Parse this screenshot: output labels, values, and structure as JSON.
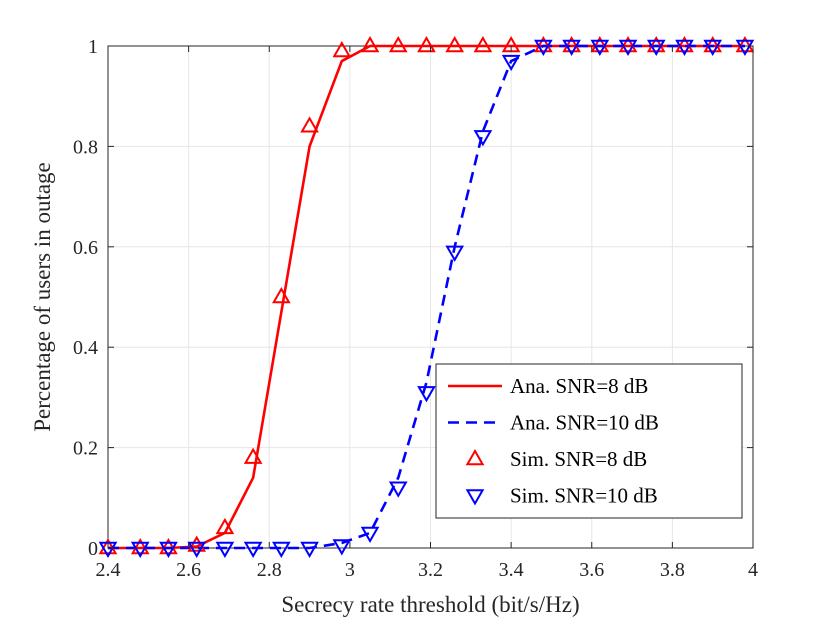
{
  "chart_data": {
    "type": "line",
    "title": "",
    "xlabel": "Secrecy rate threshold (bit/s/Hz)",
    "ylabel": "Percentage of users in outage",
    "xlim": [
      2.4,
      4
    ],
    "ylim": [
      0,
      1
    ],
    "grid": true,
    "x_ticks": [
      2.4,
      2.6,
      2.8,
      3,
      3.2,
      3.4,
      3.6,
      3.8,
      4
    ],
    "x_tick_labels": [
      "2.4",
      "2.6",
      "2.8",
      "3",
      "3.2",
      "3.4",
      "3.6",
      "3.8",
      "4"
    ],
    "y_ticks": [
      0,
      0.2,
      0.4,
      0.6,
      0.8,
      1
    ],
    "y_tick_labels": [
      "0",
      "0.2",
      "0.4",
      "0.6",
      "0.8",
      "1"
    ],
    "legend_position": "lower-right",
    "series": [
      {
        "name": "Ana. SNR=8 dB",
        "kind": "line",
        "style": "solid",
        "color": "#ff0000",
        "x": [
          2.4,
          2.48,
          2.55,
          2.62,
          2.69,
          2.76,
          2.83,
          2.9,
          2.98,
          3.05,
          3.12,
          3.19,
          3.26,
          3.33,
          3.4,
          3.48,
          3.55,
          3.62,
          3.69,
          3.76,
          3.83,
          3.9,
          3.98
        ],
        "y": [
          0.0,
          0.0,
          0.0,
          0.003,
          0.03,
          0.14,
          0.47,
          0.8,
          0.97,
          1.0,
          1.0,
          1.0,
          1.0,
          1.0,
          1.0,
          1.0,
          1.0,
          1.0,
          1.0,
          1.0,
          1.0,
          1.0,
          1.0
        ]
      },
      {
        "name": "Ana. SNR=10 dB",
        "kind": "line",
        "style": "dashed",
        "color": "#0000ff",
        "x": [
          2.4,
          2.48,
          2.55,
          2.62,
          2.69,
          2.76,
          2.83,
          2.9,
          2.98,
          3.05,
          3.12,
          3.19,
          3.26,
          3.33,
          3.4,
          3.48,
          3.55,
          3.62,
          3.69,
          3.76,
          3.83,
          3.9,
          3.98
        ],
        "y": [
          0.0,
          0.0,
          0.0,
          0.0,
          0.0,
          0.0,
          0.0,
          0.0,
          0.01,
          0.03,
          0.14,
          0.33,
          0.6,
          0.83,
          0.97,
          1.0,
          1.0,
          1.0,
          1.0,
          1.0,
          1.0,
          1.0,
          1.0
        ]
      },
      {
        "name": "Sim. SNR=8 dB",
        "kind": "marker",
        "marker": "triangle-up",
        "color": "#ff0000",
        "x": [
          2.4,
          2.48,
          2.55,
          2.62,
          2.69,
          2.76,
          2.83,
          2.9,
          2.98,
          3.05,
          3.12,
          3.19,
          3.26,
          3.33,
          3.4,
          3.48,
          3.55,
          3.62,
          3.69,
          3.76,
          3.83,
          3.9,
          3.98
        ],
        "y": [
          0.0,
          0.0,
          0.0,
          0.005,
          0.04,
          0.18,
          0.5,
          0.84,
          0.99,
          1.0,
          1.0,
          1.0,
          1.0,
          1.0,
          1.0,
          1.0,
          1.0,
          1.0,
          1.0,
          1.0,
          1.0,
          1.0,
          1.0
        ]
      },
      {
        "name": "Sim. SNR=10 dB",
        "kind": "marker",
        "marker": "triangle-down",
        "color": "#0000ff",
        "x": [
          2.4,
          2.48,
          2.55,
          2.62,
          2.69,
          2.76,
          2.83,
          2.9,
          2.98,
          3.05,
          3.12,
          3.19,
          3.26,
          3.33,
          3.4,
          3.48,
          3.55,
          3.62,
          3.69,
          3.76,
          3.83,
          3.9,
          3.98
        ],
        "y": [
          0.0,
          0.0,
          0.0,
          0.0,
          0.0,
          0.0,
          0.0,
          0.0,
          0.005,
          0.03,
          0.12,
          0.31,
          0.59,
          0.82,
          0.97,
          1.0,
          1.0,
          1.0,
          1.0,
          1.0,
          1.0,
          1.0,
          1.0
        ]
      }
    ]
  }
}
